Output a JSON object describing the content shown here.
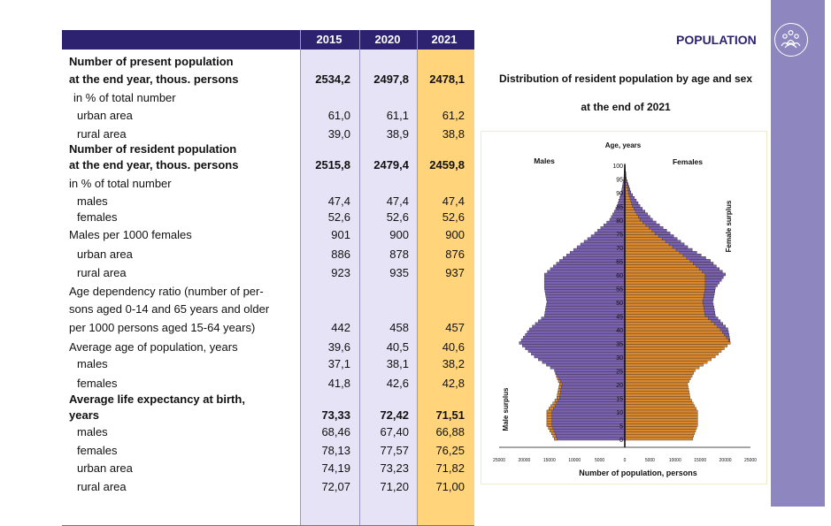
{
  "section_title": "POPULATION",
  "section_icon": "people-group-icon",
  "table": {
    "years": [
      "2015",
      "2020",
      "2021"
    ],
    "rows": [
      {
        "label": "Number of present population",
        "bold": true,
        "indent": 0,
        "values": [
          "",
          "",
          ""
        ]
      },
      {
        "label": "at the end year, thous. persons",
        "bold": true,
        "indent": 0,
        "values": [
          "2534,2",
          "2497,8",
          "2478,1"
        ]
      },
      {
        "label": "in % of total number",
        "bold": false,
        "indent": 1,
        "values": [
          "",
          "",
          ""
        ]
      },
      {
        "label": "urban area",
        "bold": false,
        "indent": 2,
        "values": [
          "61,0",
          "61,1",
          "61,2"
        ]
      },
      {
        "label": "rural area",
        "bold": false,
        "indent": 2,
        "values": [
          "39,0",
          "38,9",
          "38,8"
        ]
      },
      {
        "label": "Number of resident population",
        "bold": true,
        "indent": 0,
        "values": [
          "",
          "",
          ""
        ]
      },
      {
        "label": "at the end year, thous. persons",
        "bold": true,
        "indent": 0,
        "values": [
          "2515,8",
          "2479,4",
          "2459,8"
        ]
      },
      {
        "label": "in % of total number",
        "bold": false,
        "indent": 0,
        "values": [
          "",
          "",
          ""
        ]
      },
      {
        "label": "males",
        "bold": false,
        "indent": 2,
        "values": [
          "47,4",
          "47,4",
          "47,4"
        ]
      },
      {
        "label": "females",
        "bold": false,
        "indent": 2,
        "values": [
          "52,6",
          "52,6",
          "52,6"
        ]
      },
      {
        "label": "Males per 1000 females",
        "bold": false,
        "indent": 0,
        "values": [
          "901",
          "900",
          "900"
        ]
      },
      {
        "label": "urban area",
        "bold": false,
        "indent": 2,
        "values": [
          "886",
          "878",
          "876"
        ]
      },
      {
        "label": "rural area",
        "bold": false,
        "indent": 2,
        "values": [
          "923",
          "935",
          "937"
        ]
      },
      {
        "label": "Age dependency ratio (number of per-",
        "bold": false,
        "indent": 0,
        "values": [
          "",
          "",
          ""
        ]
      },
      {
        "label": "sons aged 0-14 and 65 years and older",
        "bold": false,
        "indent": 0,
        "values": [
          "",
          "",
          ""
        ]
      },
      {
        "label": "per 1000 persons aged 15-64 years)",
        "bold": false,
        "indent": 0,
        "values": [
          "442",
          "458",
          "457"
        ]
      },
      {
        "label": "Average age of population, years",
        "bold": false,
        "indent": 0,
        "values": [
          "39,6",
          "40,5",
          "40,6"
        ]
      },
      {
        "label": "males",
        "bold": false,
        "indent": 2,
        "values": [
          "37,1",
          "38,1",
          "38,2"
        ]
      },
      {
        "label": "females",
        "bold": false,
        "indent": 2,
        "values": [
          "41,8",
          "42,6",
          "42,8"
        ]
      },
      {
        "label": "Average life expectancy at birth,",
        "bold": true,
        "indent": 0,
        "values": [
          "",
          "",
          ""
        ]
      },
      {
        "label": "years",
        "bold": true,
        "indent": 0,
        "values": [
          "73,33",
          "72,42",
          "71,51"
        ]
      },
      {
        "label": "males",
        "bold": false,
        "indent": 2,
        "values": [
          "68,46",
          "67,40",
          "66,88"
        ]
      },
      {
        "label": "females",
        "bold": false,
        "indent": 2,
        "values": [
          "78,13",
          "77,57",
          "76,25"
        ]
      },
      {
        "label": "urban area",
        "bold": false,
        "indent": 2,
        "values": [
          "74,19",
          "73,23",
          "71,82"
        ]
      },
      {
        "label": "rural area",
        "bold": false,
        "indent": 2,
        "values": [
          "72,07",
          "71,20",
          "71,00"
        ]
      }
    ]
  },
  "chart_title": "Distribution of resident population by age and sex",
  "chart_subtitle": "at the end of 2021",
  "chart_data": {
    "type": "bar",
    "orientation": "horizontal-pyramid",
    "title": "Distribution of resident population by age and sex",
    "subtitle": "at the end of 2021",
    "xlabel": "Number of population, persons",
    "ylabel": "Age, years",
    "left_label": "Males",
    "right_label": "Females",
    "left_surplus_label": "Male surplus",
    "right_surplus_label": "Female surplus",
    "xlim": [
      -25000,
      25000
    ],
    "x_ticks": [
      "25000",
      "20000",
      "15000",
      "10000",
      "5000",
      "0",
      "5000",
      "10000",
      "15000",
      "20000",
      "25000"
    ],
    "y_ticks": [
      "0",
      "5",
      "10",
      "15",
      "20",
      "25",
      "30",
      "35",
      "40",
      "45",
      "50",
      "55",
      "60",
      "65",
      "70",
      "75",
      "80",
      "85",
      "90",
      "95",
      "100"
    ],
    "series_colors": {
      "males": "#7a62b0",
      "females": "#d9882e",
      "axis": "#111111"
    },
    "age_points": [
      0,
      5,
      10,
      15,
      20,
      25,
      30,
      35,
      40,
      45,
      50,
      55,
      60,
      65,
      70,
      75,
      80,
      85,
      90,
      95,
      100
    ],
    "males": [
      14000,
      15500,
      15500,
      13500,
      13000,
      14000,
      18000,
      21000,
      19000,
      16000,
      15500,
      16000,
      16000,
      13000,
      9500,
      6000,
      3000,
      1500,
      700,
      200,
      20
    ],
    "females": [
      13500,
      14500,
      14500,
      13000,
      12500,
      14000,
      18000,
      21000,
      20500,
      18000,
      17500,
      18000,
      20000,
      17000,
      12500,
      9000,
      5500,
      3000,
      1200,
      300,
      30
    ]
  }
}
